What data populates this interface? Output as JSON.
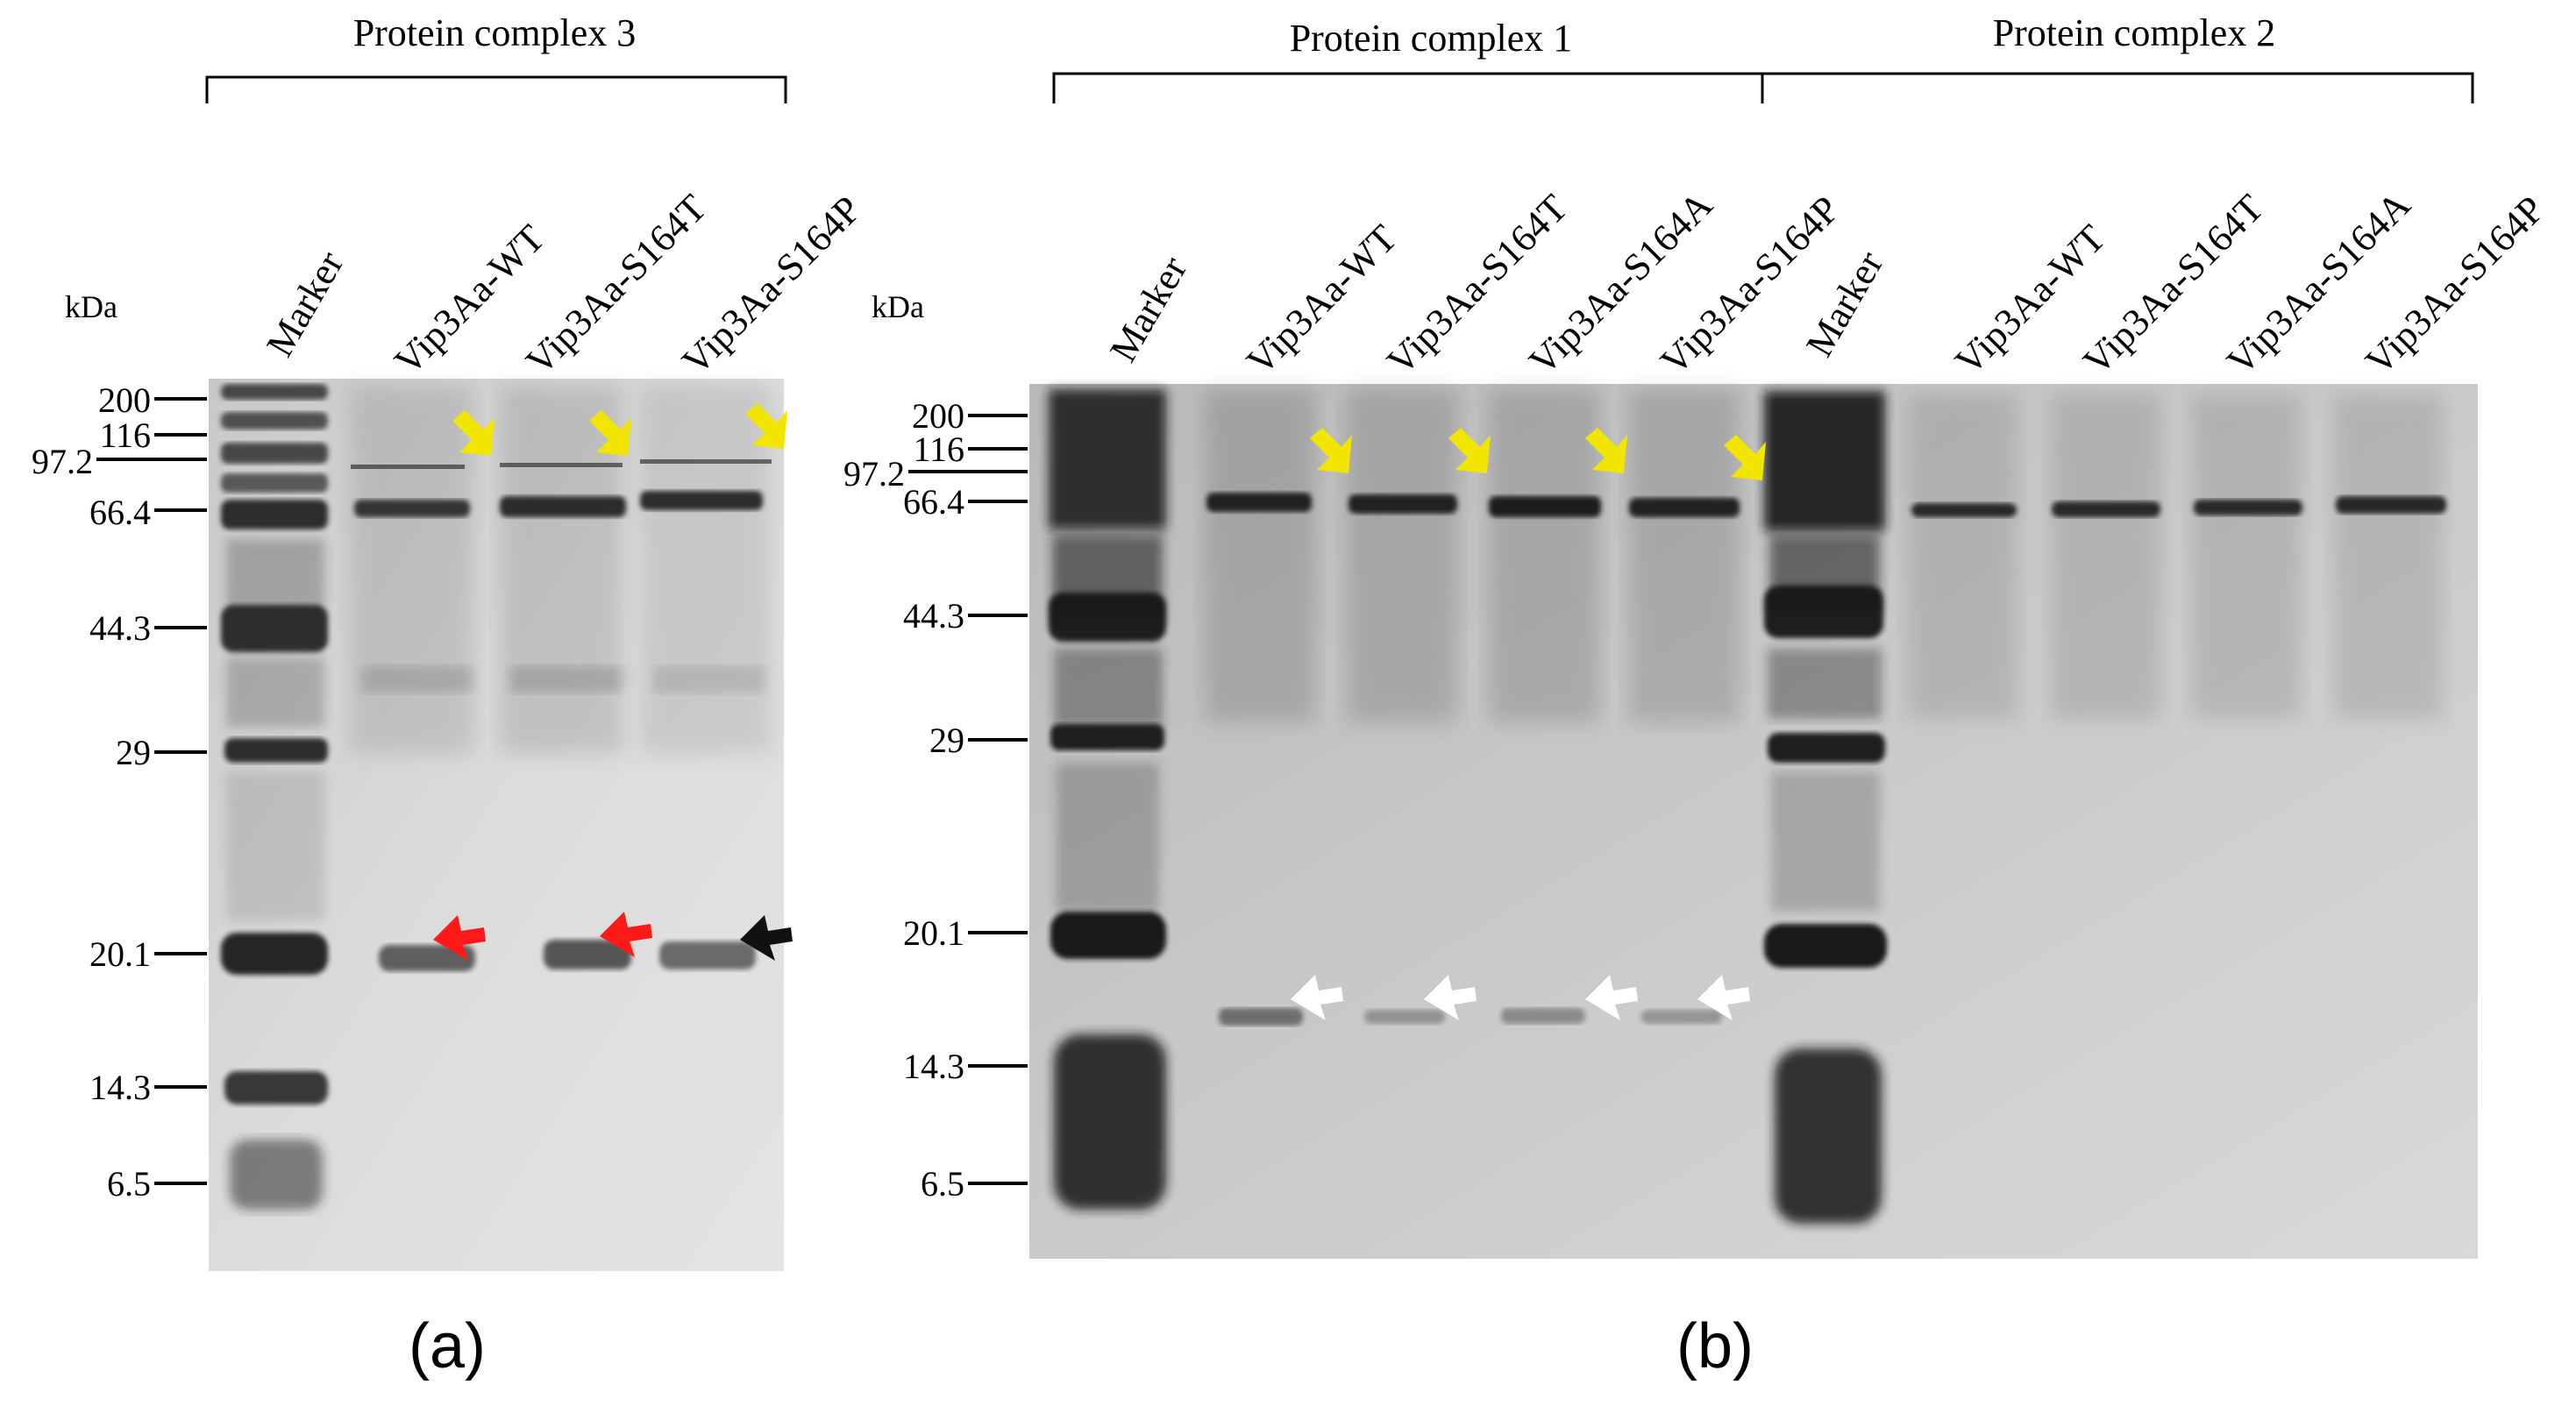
{
  "panels": [
    {
      "id": "a",
      "caption": "(a)",
      "kda_label": "kDa",
      "markers": [
        "200",
        "116",
        "97.2",
        "66.4",
        "44.3",
        "29",
        "20.1",
        "14.3",
        "6.5"
      ],
      "groups": [
        {
          "label": "Protein complex 3"
        }
      ],
      "lanes": [
        "Marker",
        "Vip3Aa-WT",
        "Vip3Aa-S164T",
        "Vip3Aa-S164P"
      ],
      "arrows": [
        {
          "lane": "Vip3Aa-WT",
          "color": "#f2e600",
          "level": "high"
        },
        {
          "lane": "Vip3Aa-S164T",
          "color": "#f2e600",
          "level": "high"
        },
        {
          "lane": "Vip3Aa-S164P",
          "color": "#f2e600",
          "level": "high"
        },
        {
          "lane": "Vip3Aa-WT",
          "color": "#ff1a1a",
          "level": "20.1"
        },
        {
          "lane": "Vip3Aa-S164T",
          "color": "#ff1a1a",
          "level": "20.1"
        },
        {
          "lane": "Vip3Aa-S164P",
          "color": "#111111",
          "level": "20.1"
        }
      ]
    },
    {
      "id": "b",
      "caption": "(b)",
      "kda_label": "kDa",
      "markers": [
        "200",
        "116",
        "97.2",
        "66.4",
        "44.3",
        "29",
        "20.1",
        "14.3",
        "6.5"
      ],
      "groups": [
        {
          "label": "Protein complex 1"
        },
        {
          "label": "Protein complex 2"
        }
      ],
      "lanes": [
        "Marker",
        "Vip3Aa-WT",
        "Vip3Aa-S164T",
        "Vip3Aa-S164A",
        "Vip3Aa-S164P",
        "Marker",
        "Vip3Aa-WT",
        "Vip3Aa-S164T",
        "Vip3Aa-S164A",
        "Vip3Aa-S164P"
      ],
      "arrows": [
        {
          "lane": "Vip3Aa-WT",
          "color": "#f2e600",
          "level": "high"
        },
        {
          "lane": "Vip3Aa-S164T",
          "color": "#f2e600",
          "level": "high"
        },
        {
          "lane": "Vip3Aa-S164A",
          "color": "#f2e600",
          "level": "high"
        },
        {
          "lane": "Vip3Aa-S164P",
          "color": "#f2e600",
          "level": "high"
        },
        {
          "lane": "Vip3Aa-WT",
          "color": "#ffffff",
          "level": "~17"
        },
        {
          "lane": "Vip3Aa-S164T",
          "color": "#ffffff",
          "level": "~17"
        },
        {
          "lane": "Vip3Aa-S164A",
          "color": "#ffffff",
          "level": "~17"
        },
        {
          "lane": "Vip3Aa-S164P",
          "color": "#ffffff",
          "level": "~17"
        }
      ]
    }
  ],
  "colors": {
    "gel_a": "#d6d6d6",
    "gel_b": "#cbcbcb",
    "band": "#1c1c1c",
    "yellow_arrow": "#f2e600",
    "red_arrow": "#ff1a1a",
    "black_arrow": "#111111",
    "white_arrow": "#ffffff"
  }
}
